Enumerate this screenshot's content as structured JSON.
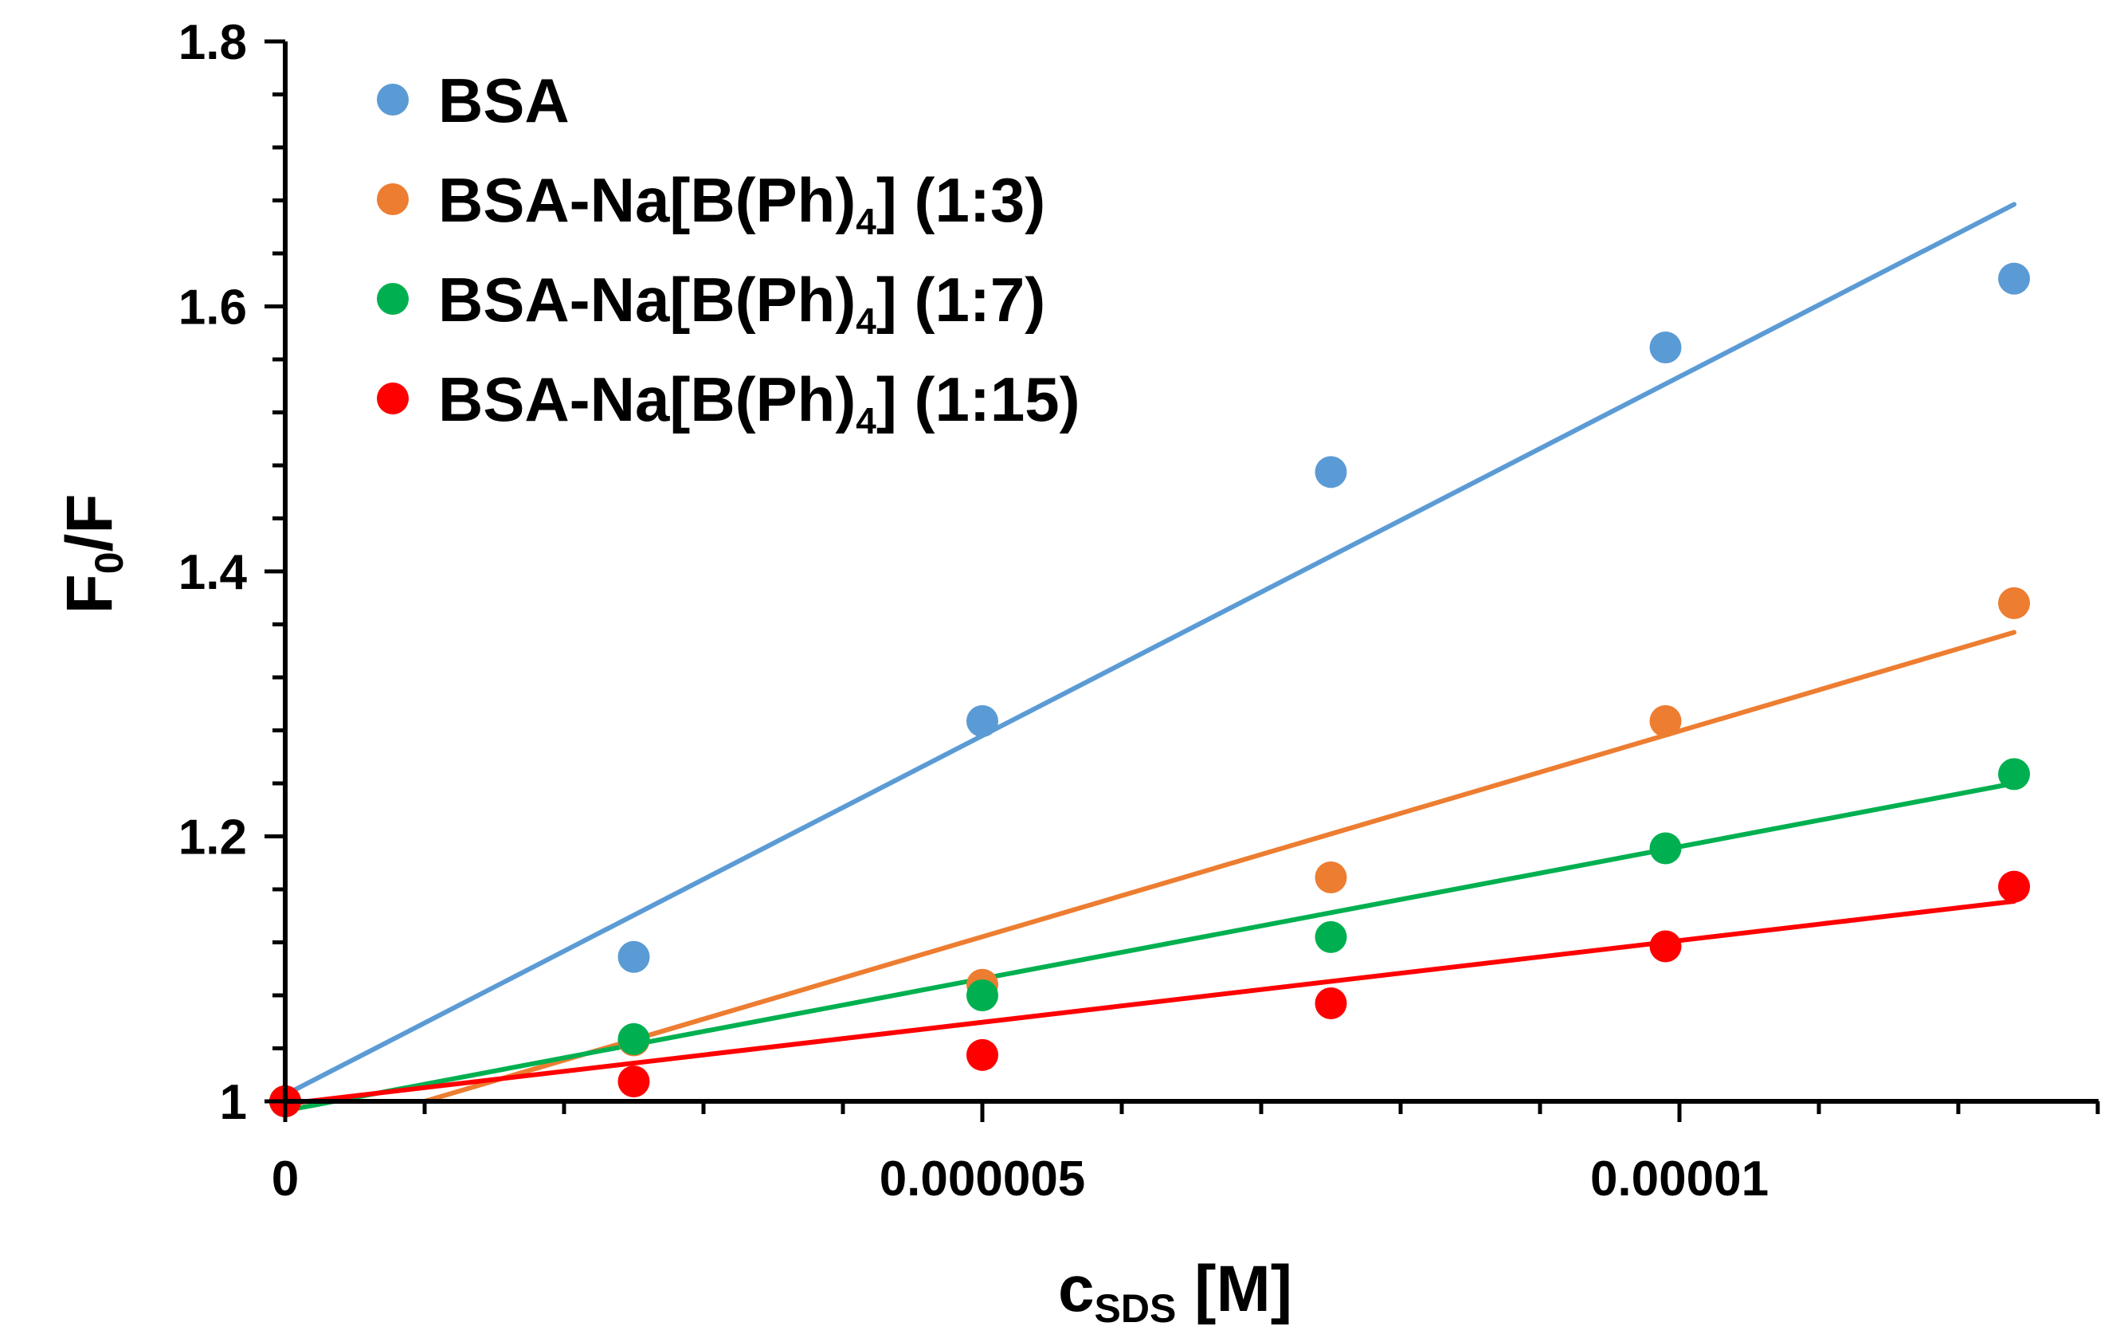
{
  "chart_data": {
    "type": "scatter",
    "title": "",
    "xlabel": {
      "main": "c",
      "sub": "SDS",
      "tail": " [M]"
    },
    "ylabel": {
      "main": "F",
      "sub": "0",
      "tail": "/F"
    },
    "xlim": [
      0,
      1.31e-05
    ],
    "ylim": [
      1,
      1.8
    ],
    "x_ticks": [
      0,
      5e-06,
      1e-05
    ],
    "x_tick_labels": [
      "0",
      "0.000005",
      "0.00001"
    ],
    "y_ticks": [
      1,
      1.2,
      1.4,
      1.6,
      1.8
    ],
    "y_tick_labels": [
      "1",
      "1.2",
      "1.4",
      "1.6",
      "1.8"
    ],
    "grid": false,
    "legend_position": "top-left",
    "series": [
      {
        "name": "BSA",
        "label": {
          "pre": "BSA",
          "sub": "",
          "post": ""
        },
        "color": "#5B9BD5",
        "x": [
          0,
          2.5e-06,
          5e-06,
          7.5e-06,
          9.9e-06,
          1.24e-05
        ],
        "y": [
          1.0,
          1.109,
          1.287,
          1.475,
          1.569,
          1.621
        ],
        "fit": {
          "x": [
            0,
            1.24e-05
          ],
          "y": [
            1.005,
            1.677
          ]
        }
      },
      {
        "name": "BSA-Na[B(Ph)4] (1:3)",
        "label": {
          "pre": "BSA-Na[B(Ph)",
          "sub": "4",
          "post": "] (1:3)"
        },
        "color": "#ED7D31",
        "x": [
          0,
          2.5e-06,
          5e-06,
          7.5e-06,
          9.9e-06,
          1.24e-05
        ],
        "y": [
          1.0,
          1.046,
          1.088,
          1.169,
          1.287,
          1.376
        ],
        "fit": {
          "x": [
            1e-06,
            1.24e-05
          ],
          "y": [
            1.0,
            1.354
          ]
        }
      },
      {
        "name": "BSA-Na[B(Ph)4] (1:7)",
        "label": {
          "pre": "BSA-Na[B(Ph)",
          "sub": "4",
          "post": "] (1:7)"
        },
        "color": "#00B050",
        "x": [
          0,
          2.5e-06,
          5e-06,
          7.5e-06,
          9.9e-06,
          1.24e-05
        ],
        "y": [
          1.0,
          1.047,
          1.08,
          1.124,
          1.191,
          1.247
        ],
        "fit": {
          "x": [
            0,
            1.24e-05
          ],
          "y": [
            0.993,
            1.24
          ]
        }
      },
      {
        "name": "BSA-Na[B(Ph)4] (1:15)",
        "label": {
          "pre": "BSA-Na[B(Ph)",
          "sub": "4",
          "post": "] (1:15)"
        },
        "color": "#FF0000",
        "x": [
          0,
          2.5e-06,
          5e-06,
          7.5e-06,
          9.9e-06,
          1.24e-05
        ],
        "y": [
          1.0,
          1.015,
          1.035,
          1.074,
          1.117,
          1.162
        ],
        "fit": {
          "x": [
            0,
            1.24e-05
          ],
          "y": [
            0.998,
            1.151
          ]
        }
      }
    ]
  }
}
